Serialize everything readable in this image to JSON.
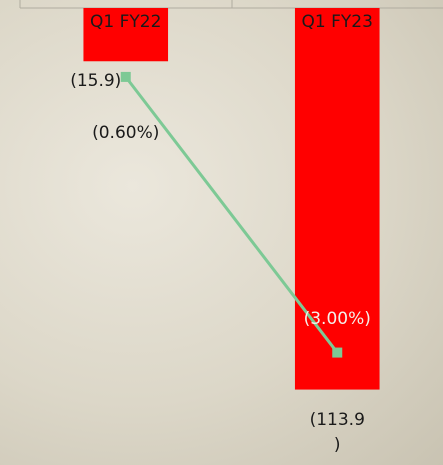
{
  "chart_data": {
    "type": "bar",
    "categories": [
      "Q1 FY22",
      "Q1 FY23"
    ],
    "series": [
      {
        "type": "bar",
        "color": "#ff0000",
        "values": [
          -15.9,
          -113.9
        ],
        "value_labels": [
          "(15.9)",
          "(113.9\n)"
        ]
      },
      {
        "type": "line",
        "color": "#7dc995",
        "axis": "y2",
        "values": [
          -0.6,
          -3.0
        ],
        "value_labels": [
          "(0.60%)",
          "(3.00%)"
        ]
      }
    ],
    "ylim": [
      -120,
      0
    ],
    "y2lim": [
      -3.5,
      0
    ]
  }
}
